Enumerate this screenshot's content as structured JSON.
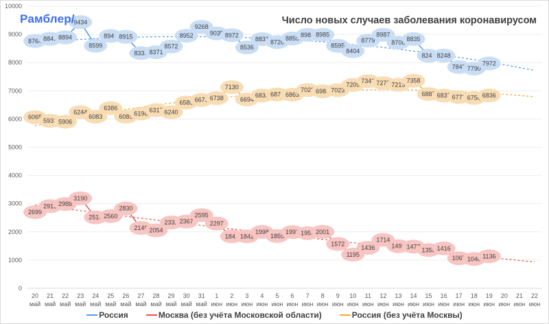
{
  "logo": "Рамблер/",
  "chart_data": {
    "type": "line",
    "title": "Число новых случаев заболевания коронавирусом",
    "xlabel": "",
    "ylabel": "",
    "ylim": [
      0,
      10000
    ],
    "yticks": [
      0,
      1000,
      2000,
      3000,
      4000,
      5000,
      6000,
      7000,
      8000,
      9000,
      10000
    ],
    "grid": true,
    "legend_position": "bottom",
    "categories": [
      {
        "day": "20",
        "month": "май"
      },
      {
        "day": "21",
        "month": "май"
      },
      {
        "day": "22",
        "month": "май"
      },
      {
        "day": "23",
        "month": "май"
      },
      {
        "day": "24",
        "month": "май"
      },
      {
        "day": "25",
        "month": "май"
      },
      {
        "day": "26",
        "month": "май"
      },
      {
        "day": "27",
        "month": "май"
      },
      {
        "day": "28",
        "month": "май"
      },
      {
        "day": "29",
        "month": "май"
      },
      {
        "day": "30",
        "month": "май"
      },
      {
        "day": "31",
        "month": "май"
      },
      {
        "day": "1",
        "month": "июн"
      },
      {
        "day": "2",
        "month": "июн"
      },
      {
        "day": "3",
        "month": "июн"
      },
      {
        "day": "4",
        "month": "июн"
      },
      {
        "day": "5",
        "month": "июн"
      },
      {
        "day": "6",
        "month": "июн"
      },
      {
        "day": "7",
        "month": "июн"
      },
      {
        "day": "8",
        "month": "июн"
      },
      {
        "day": "9",
        "month": "июн"
      },
      {
        "day": "10",
        "month": "июн"
      },
      {
        "day": "11",
        "month": "июн"
      },
      {
        "day": "12",
        "month": "июн"
      },
      {
        "day": "13",
        "month": "июн"
      },
      {
        "day": "14",
        "month": "июн"
      },
      {
        "day": "15",
        "month": "июн"
      },
      {
        "day": "16",
        "month": "июн"
      },
      {
        "day": "17",
        "month": "июн"
      },
      {
        "day": "18",
        "month": "июн"
      },
      {
        "day": "19",
        "month": "июн"
      },
      {
        "day": "20",
        "month": "июн"
      },
      {
        "day": "21",
        "month": "июн"
      },
      {
        "day": "22",
        "month": "июн"
      }
    ],
    "series": [
      {
        "name": "Россия",
        "color": "#4a9ae8",
        "bubble": "#c9ddf5",
        "values": [
          8764,
          8845,
          8894,
          9434,
          8599,
          8946,
          8915,
          8338,
          8371,
          8572,
          8952,
          9268,
          9035,
          8972,
          8536,
          8831,
          8726,
          8855,
          8984,
          8985,
          8595,
          8404,
          8779,
          8987,
          8706,
          8835,
          8246,
          8248,
          7843,
          7790,
          7972
        ],
        "trend": {
          "type": "polynomial",
          "start": 8900,
          "end": 6900
        }
      },
      {
        "name": "Москва (без учёта Московской области)",
        "color": "#e8534a",
        "bubble": "#f7c5c2",
        "values": [
          2699,
          2913,
          2988,
          3190,
          2516,
          2560,
          2830,
          2140,
          2054,
          2332,
          2367,
          2595,
          2297,
          1842,
          1842,
          1998,
          1855,
          1992,
          1956,
          2001,
          1572,
          1195,
          1436,
          1714,
          1493,
          1477,
          1356,
          1416,
          1065,
          1040,
          1136
        ],
        "trend": {
          "type": "polynomial",
          "start": 2930,
          "end": 680
        }
      },
      {
        "name": "Россия (без учёта Москвы)",
        "color": "#f0a830",
        "bubble": "#f8dcb4",
        "values": [
          6065,
          5936,
          5906,
          6244,
          6083,
          6386,
          6085,
          6198,
          6317,
          6240,
          6585,
          6675,
          6738,
          7130,
          6694,
          6835,
          6871,
          6863,
          7028,
          6984,
          7023,
          7209,
          7343,
          7273,
          7213,
          7358,
          6887,
          6832,
          6778,
          6750,
          6836
        ],
        "trend": {
          "type": "polynomial",
          "start": 5980,
          "end": 6170
        }
      }
    ]
  }
}
